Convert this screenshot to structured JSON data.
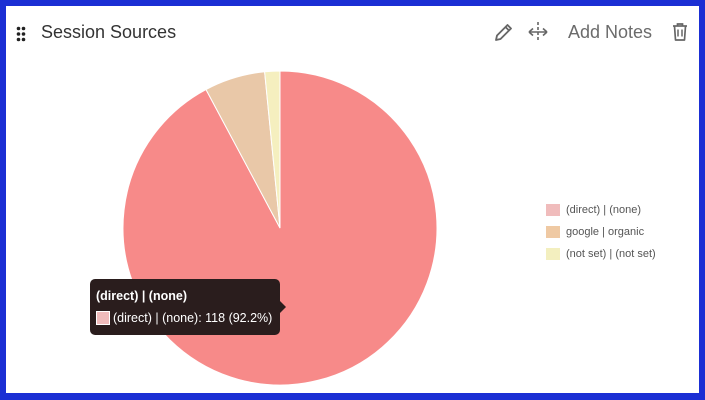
{
  "widget": {
    "title": "Session Sources",
    "add_notes_label": "Add Notes",
    "icons": [
      "drag-handle-icon",
      "pencil-icon",
      "move-arrows-icon",
      "trash-icon"
    ]
  },
  "colors": {
    "frame_border": "#1b2fd4",
    "slice_direct": "#f78a89",
    "slice_google": "#e9c8a8",
    "slice_notset": "#f5efbf",
    "legend_direct": "#f0bcbc",
    "legend_google": "#efc9a3",
    "legend_notset": "#f3efbf"
  },
  "chart_data": {
    "type": "pie",
    "categories": [
      "(direct) | (none)",
      "google | organic",
      "(not set) | (not set)"
    ],
    "values": [
      118,
      8,
      2
    ],
    "percentages": [
      92.2,
      6.25,
      1.56
    ],
    "title": "Session Sources",
    "legend_position": "right",
    "tooltip": {
      "title": "(direct) | (none)",
      "label": "(direct) | (none): 118 (92.2%)"
    }
  }
}
